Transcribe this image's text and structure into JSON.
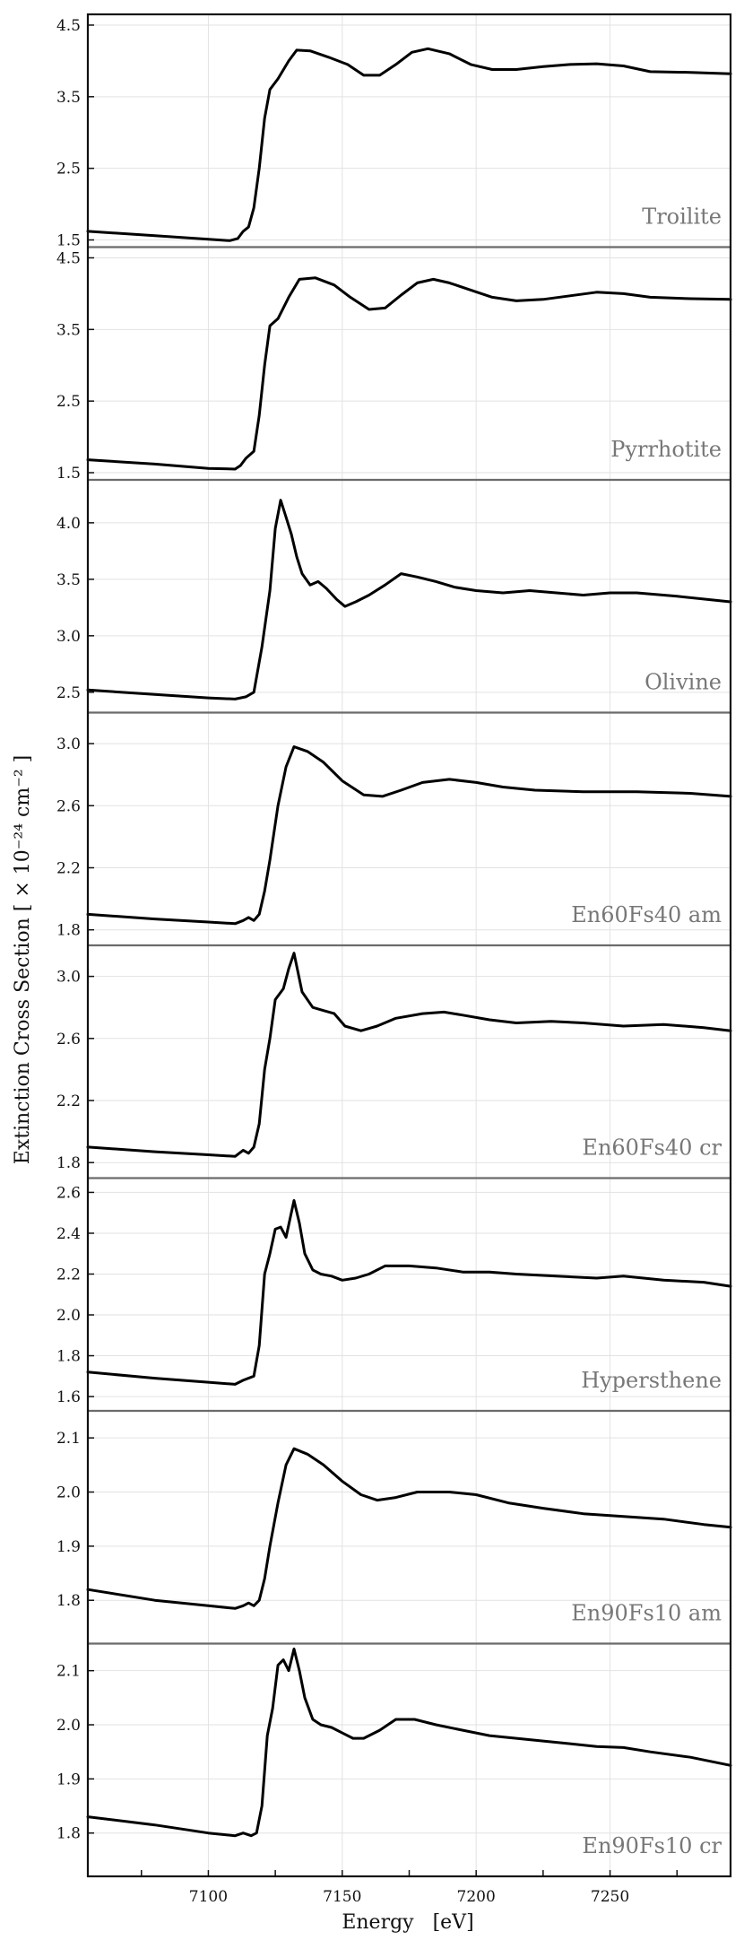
{
  "chart_data": {
    "type": "line",
    "xlabel": "Energy   [eV]",
    "ylabel": "Extinction Cross Section [ × 10⁻²⁴ cm⁻² ]",
    "xlim": [
      7055,
      7295
    ],
    "xticks": [
      7100,
      7150,
      7200,
      7250
    ],
    "grid": true,
    "panels": [
      {
        "name": "Troilite",
        "ylim": [
          1.4,
          4.65
        ],
        "yticks": [
          1.5,
          2.5,
          3.5,
          4.5
        ],
        "points": [
          [
            7055,
            1.62
          ],
          [
            7080,
            1.56
          ],
          [
            7100,
            1.51
          ],
          [
            7108,
            1.49
          ],
          [
            7111,
            1.52
          ],
          [
            7113,
            1.62
          ],
          [
            7115,
            1.68
          ],
          [
            7117,
            1.95
          ],
          [
            7119,
            2.5
          ],
          [
            7121,
            3.2
          ],
          [
            7123,
            3.6
          ],
          [
            7126,
            3.75
          ],
          [
            7130,
            4.0
          ],
          [
            7133,
            4.15
          ],
          [
            7138,
            4.14
          ],
          [
            7145,
            4.05
          ],
          [
            7152,
            3.95
          ],
          [
            7158,
            3.8
          ],
          [
            7164,
            3.8
          ],
          [
            7170,
            3.95
          ],
          [
            7176,
            4.12
          ],
          [
            7182,
            4.17
          ],
          [
            7190,
            4.1
          ],
          [
            7198,
            3.95
          ],
          [
            7206,
            3.88
          ],
          [
            7215,
            3.88
          ],
          [
            7225,
            3.92
          ],
          [
            7235,
            3.95
          ],
          [
            7245,
            3.96
          ],
          [
            7255,
            3.93
          ],
          [
            7265,
            3.85
          ],
          [
            7280,
            3.84
          ],
          [
            7295,
            3.82
          ]
        ]
      },
      {
        "name": "Pyrrhotite",
        "ylim": [
          1.4,
          4.65
        ],
        "yticks": [
          1.5,
          2.5,
          3.5,
          4.5
        ],
        "points": [
          [
            7055,
            1.68
          ],
          [
            7080,
            1.62
          ],
          [
            7100,
            1.56
          ],
          [
            7110,
            1.55
          ],
          [
            7112,
            1.6
          ],
          [
            7114,
            1.7
          ],
          [
            7117,
            1.8
          ],
          [
            7119,
            2.3
          ],
          [
            7121,
            3.0
          ],
          [
            7123,
            3.55
          ],
          [
            7126,
            3.65
          ],
          [
            7130,
            3.95
          ],
          [
            7134,
            4.2
          ],
          [
            7140,
            4.22
          ],
          [
            7147,
            4.12
          ],
          [
            7153,
            3.95
          ],
          [
            7160,
            3.78
          ],
          [
            7166,
            3.8
          ],
          [
            7172,
            3.98
          ],
          [
            7178,
            4.15
          ],
          [
            7184,
            4.2
          ],
          [
            7190,
            4.15
          ],
          [
            7198,
            4.05
          ],
          [
            7206,
            3.95
          ],
          [
            7215,
            3.9
          ],
          [
            7225,
            3.92
          ],
          [
            7235,
            3.97
          ],
          [
            7245,
            4.02
          ],
          [
            7255,
            4.0
          ],
          [
            7265,
            3.95
          ],
          [
            7280,
            3.93
          ],
          [
            7295,
            3.92
          ]
        ]
      },
      {
        "name": "Olivine",
        "ylim": [
          2.32,
          4.38
        ],
        "yticks": [
          2.5,
          3.0,
          3.5,
          4.0
        ],
        "points": [
          [
            7055,
            2.52
          ],
          [
            7080,
            2.48
          ],
          [
            7100,
            2.45
          ],
          [
            7110,
            2.44
          ],
          [
            7114,
            2.46
          ],
          [
            7117,
            2.5
          ],
          [
            7120,
            2.9
          ],
          [
            7123,
            3.4
          ],
          [
            7125,
            3.95
          ],
          [
            7127,
            4.2
          ],
          [
            7129,
            4.05
          ],
          [
            7131,
            3.9
          ],
          [
            7133,
            3.7
          ],
          [
            7135,
            3.55
          ],
          [
            7138,
            3.45
          ],
          [
            7141,
            3.48
          ],
          [
            7144,
            3.42
          ],
          [
            7148,
            3.32
          ],
          [
            7151,
            3.26
          ],
          [
            7155,
            3.3
          ],
          [
            7160,
            3.36
          ],
          [
            7166,
            3.45
          ],
          [
            7172,
            3.55
          ],
          [
            7178,
            3.52
          ],
          [
            7185,
            3.48
          ],
          [
            7192,
            3.43
          ],
          [
            7200,
            3.4
          ],
          [
            7210,
            3.38
          ],
          [
            7220,
            3.4
          ],
          [
            7230,
            3.38
          ],
          [
            7240,
            3.36
          ],
          [
            7250,
            3.38
          ],
          [
            7260,
            3.38
          ],
          [
            7275,
            3.35
          ],
          [
            7295,
            3.3
          ]
        ]
      },
      {
        "name": "En60Fs40 am",
        "ylim": [
          1.7,
          3.2
        ],
        "yticks": [
          1.8,
          2.2,
          2.6,
          3.0
        ],
        "points": [
          [
            7055,
            1.9
          ],
          [
            7080,
            1.87
          ],
          [
            7100,
            1.85
          ],
          [
            7110,
            1.84
          ],
          [
            7113,
            1.86
          ],
          [
            7115,
            1.88
          ],
          [
            7117,
            1.86
          ],
          [
            7119,
            1.9
          ],
          [
            7121,
            2.05
          ],
          [
            7123,
            2.25
          ],
          [
            7126,
            2.6
          ],
          [
            7129,
            2.85
          ],
          [
            7132,
            2.98
          ],
          [
            7137,
            2.95
          ],
          [
            7143,
            2.88
          ],
          [
            7150,
            2.76
          ],
          [
            7158,
            2.67
          ],
          [
            7165,
            2.66
          ],
          [
            7172,
            2.7
          ],
          [
            7180,
            2.75
          ],
          [
            7190,
            2.77
          ],
          [
            7200,
            2.75
          ],
          [
            7210,
            2.72
          ],
          [
            7222,
            2.7
          ],
          [
            7240,
            2.69
          ],
          [
            7260,
            2.69
          ],
          [
            7280,
            2.68
          ],
          [
            7295,
            2.66
          ]
        ]
      },
      {
        "name": "En60Fs40 cr",
        "ylim": [
          1.7,
          3.2
        ],
        "yticks": [
          1.8,
          2.2,
          2.6,
          3.0
        ],
        "points": [
          [
            7055,
            1.9
          ],
          [
            7080,
            1.87
          ],
          [
            7100,
            1.85
          ],
          [
            7110,
            1.84
          ],
          [
            7113,
            1.88
          ],
          [
            7115,
            1.86
          ],
          [
            7117,
            1.9
          ],
          [
            7119,
            2.05
          ],
          [
            7121,
            2.4
          ],
          [
            7123,
            2.6
          ],
          [
            7125,
            2.85
          ],
          [
            7128,
            2.92
          ],
          [
            7130,
            3.05
          ],
          [
            7132,
            3.15
          ],
          [
            7135,
            2.9
          ],
          [
            7139,
            2.8
          ],
          [
            7143,
            2.78
          ],
          [
            7147,
            2.76
          ],
          [
            7151,
            2.68
          ],
          [
            7157,
            2.65
          ],
          [
            7163,
            2.68
          ],
          [
            7170,
            2.73
          ],
          [
            7180,
            2.76
          ],
          [
            7188,
            2.77
          ],
          [
            7195,
            2.75
          ],
          [
            7205,
            2.72
          ],
          [
            7215,
            2.7
          ],
          [
            7228,
            2.71
          ],
          [
            7240,
            2.7
          ],
          [
            7255,
            2.68
          ],
          [
            7270,
            2.69
          ],
          [
            7285,
            2.67
          ],
          [
            7295,
            2.65
          ]
        ]
      },
      {
        "name": "Hypersthene",
        "ylim": [
          1.53,
          2.67
        ],
        "yticks": [
          1.6,
          1.8,
          2.0,
          2.2,
          2.4,
          2.6
        ],
        "points": [
          [
            7055,
            1.72
          ],
          [
            7080,
            1.69
          ],
          [
            7100,
            1.67
          ],
          [
            7110,
            1.66
          ],
          [
            7113,
            1.68
          ],
          [
            7117,
            1.7
          ],
          [
            7119,
            1.85
          ],
          [
            7121,
            2.2
          ],
          [
            7123,
            2.3
          ],
          [
            7125,
            2.42
          ],
          [
            7127,
            2.43
          ],
          [
            7129,
            2.38
          ],
          [
            7131,
            2.5
          ],
          [
            7132,
            2.56
          ],
          [
            7134,
            2.45
          ],
          [
            7136,
            2.3
          ],
          [
            7139,
            2.22
          ],
          [
            7142,
            2.2
          ],
          [
            7146,
            2.19
          ],
          [
            7150,
            2.17
          ],
          [
            7155,
            2.18
          ],
          [
            7160,
            2.2
          ],
          [
            7166,
            2.24
          ],
          [
            7175,
            2.24
          ],
          [
            7185,
            2.23
          ],
          [
            7195,
            2.21
          ],
          [
            7205,
            2.21
          ],
          [
            7215,
            2.2
          ],
          [
            7230,
            2.19
          ],
          [
            7245,
            2.18
          ],
          [
            7255,
            2.19
          ],
          [
            7270,
            2.17
          ],
          [
            7285,
            2.16
          ],
          [
            7295,
            2.14
          ]
        ]
      },
      {
        "name": "En90Fs10 am",
        "ylim": [
          1.72,
          2.15
        ],
        "yticks": [
          1.8,
          1.9,
          2.0,
          2.1
        ],
        "points": [
          [
            7055,
            1.82
          ],
          [
            7080,
            1.8
          ],
          [
            7100,
            1.79
          ],
          [
            7110,
            1.785
          ],
          [
            7113,
            1.79
          ],
          [
            7115,
            1.795
          ],
          [
            7117,
            1.79
          ],
          [
            7119,
            1.8
          ],
          [
            7121,
            1.84
          ],
          [
            7123,
            1.9
          ],
          [
            7126,
            1.98
          ],
          [
            7129,
            2.05
          ],
          [
            7132,
            2.08
          ],
          [
            7137,
            2.07
          ],
          [
            7143,
            2.05
          ],
          [
            7150,
            2.02
          ],
          [
            7157,
            1.995
          ],
          [
            7163,
            1.985
          ],
          [
            7170,
            1.99
          ],
          [
            7178,
            2.0
          ],
          [
            7190,
            2.0
          ],
          [
            7200,
            1.995
          ],
          [
            7212,
            1.98
          ],
          [
            7225,
            1.97
          ],
          [
            7240,
            1.96
          ],
          [
            7255,
            1.955
          ],
          [
            7270,
            1.95
          ],
          [
            7285,
            1.94
          ],
          [
            7295,
            1.935
          ]
        ]
      },
      {
        "name": "En90Fs10 cr",
        "ylim": [
          1.72,
          2.15
        ],
        "yticks": [
          1.8,
          1.9,
          2.0,
          2.1
        ],
        "points": [
          [
            7055,
            1.83
          ],
          [
            7080,
            1.815
          ],
          [
            7100,
            1.8
          ],
          [
            7110,
            1.795
          ],
          [
            7113,
            1.8
          ],
          [
            7116,
            1.795
          ],
          [
            7118,
            1.8
          ],
          [
            7120,
            1.85
          ],
          [
            7122,
            1.98
          ],
          [
            7124,
            2.03
          ],
          [
            7126,
            2.11
          ],
          [
            7128,
            2.12
          ],
          [
            7130,
            2.1
          ],
          [
            7132,
            2.14
          ],
          [
            7134,
            2.1
          ],
          [
            7136,
            2.05
          ],
          [
            7139,
            2.01
          ],
          [
            7142,
            2.0
          ],
          [
            7146,
            1.995
          ],
          [
            7150,
            1.985
          ],
          [
            7154,
            1.975
          ],
          [
            7158,
            1.975
          ],
          [
            7164,
            1.99
          ],
          [
            7170,
            2.01
          ],
          [
            7177,
            2.01
          ],
          [
            7185,
            2.0
          ],
          [
            7195,
            1.99
          ],
          [
            7205,
            1.98
          ],
          [
            7215,
            1.975
          ],
          [
            7225,
            1.97
          ],
          [
            7235,
            1.965
          ],
          [
            7245,
            1.96
          ],
          [
            7255,
            1.958
          ],
          [
            7265,
            1.95
          ],
          [
            7280,
            1.94
          ],
          [
            7295,
            1.925
          ]
        ]
      }
    ]
  }
}
